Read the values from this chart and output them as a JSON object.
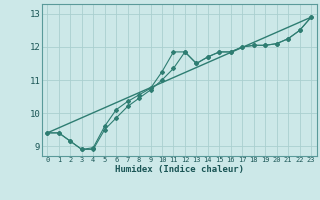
{
  "title": "",
  "xlabel": "Humidex (Indice chaleur)",
  "ylabel": "",
  "bg_color": "#cce8e8",
  "grid_color": "#aacfcf",
  "line_color": "#2e7d72",
  "xlim": [
    -0.5,
    23.5
  ],
  "ylim": [
    8.7,
    13.3
  ],
  "xticks": [
    0,
    1,
    2,
    3,
    4,
    5,
    6,
    7,
    8,
    9,
    10,
    11,
    12,
    13,
    14,
    15,
    16,
    17,
    18,
    19,
    20,
    21,
    22,
    23
  ],
  "yticks": [
    9,
    10,
    11,
    12,
    13
  ],
  "line1_x": [
    0,
    1,
    2,
    3,
    4,
    5,
    6,
    7,
    8,
    9,
    10,
    11,
    12,
    13,
    14,
    15,
    16,
    17,
    18,
    19,
    20,
    21,
    22,
    23
  ],
  "line1_y": [
    9.4,
    9.4,
    9.15,
    8.9,
    8.95,
    9.6,
    10.1,
    10.35,
    10.55,
    10.75,
    11.25,
    11.85,
    11.85,
    11.5,
    11.7,
    11.85,
    11.85,
    12.0,
    12.05,
    12.05,
    12.1,
    12.25,
    12.5,
    12.9
  ],
  "line2_x": [
    0,
    1,
    2,
    3,
    4,
    5,
    6,
    7,
    8,
    9,
    10,
    11,
    12,
    13,
    14,
    15,
    16,
    17,
    18,
    19,
    20,
    21,
    22,
    23
  ],
  "line2_y": [
    9.4,
    9.4,
    9.15,
    8.9,
    8.9,
    9.5,
    9.85,
    10.2,
    10.45,
    10.7,
    11.0,
    11.35,
    11.85,
    11.5,
    11.7,
    11.85,
    11.85,
    12.0,
    12.05,
    12.05,
    12.1,
    12.25,
    12.5,
    12.9
  ],
  "trend_x": [
    0,
    23
  ],
  "trend_y": [
    9.4,
    12.9
  ]
}
